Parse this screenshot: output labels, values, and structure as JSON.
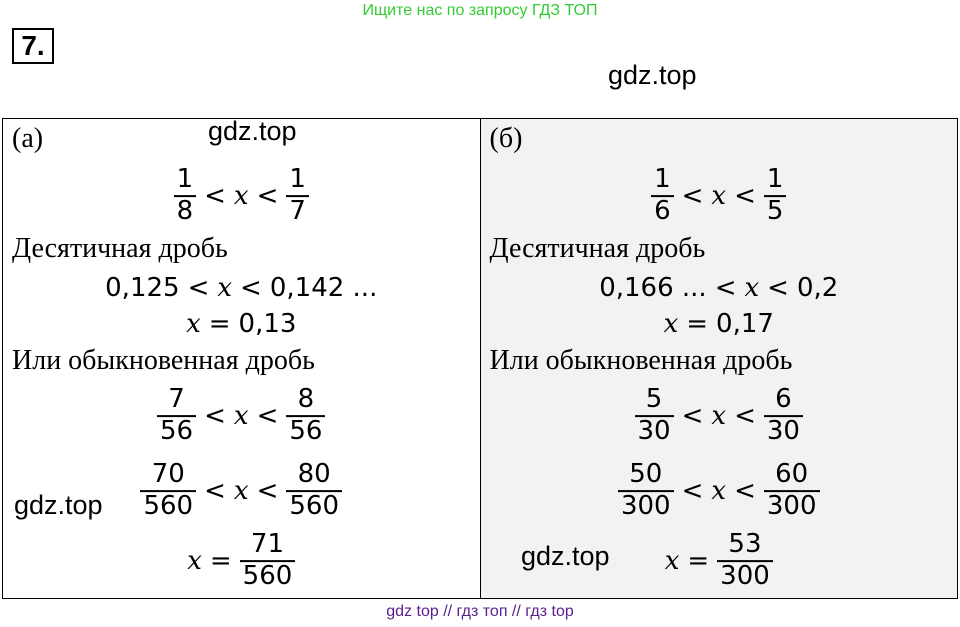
{
  "banner": "Ищите нас по запросу ГДЗ ТОП",
  "problem_number": "7.",
  "watermarks": [
    "gdz.top",
    "gdz.top",
    "gdz.top",
    "gdz.top"
  ],
  "columns": [
    {
      "label": "(а)",
      "lines": [
        {
          "parts": [
            {
              "num": "1",
              "den": "8"
            },
            "<",
            {
              "var": "x"
            },
            "<",
            {
              "num": "1",
              "den": "7"
            }
          ]
        },
        {
          "text": "Десятичная дробь"
        },
        {
          "parts": [
            "0,125",
            "<",
            {
              "var": "x"
            },
            "<",
            "0,142 ..."
          ]
        },
        {
          "parts": [
            {
              "var": "x"
            },
            "=",
            "0,13"
          ]
        },
        {
          "text": "Или обыкновенная дробь"
        },
        {
          "parts": [
            {
              "num": "7",
              "den": "56"
            },
            "<",
            {
              "var": "x"
            },
            "<",
            {
              "num": "8",
              "den": "56"
            }
          ]
        },
        {
          "parts": [
            {
              "num": "70",
              "den": "560"
            },
            "<",
            {
              "var": "x"
            },
            "<",
            {
              "num": "80",
              "den": "560"
            }
          ]
        },
        {
          "parts": [
            {
              "var": "x"
            },
            "=",
            {
              "num": "71",
              "den": "560"
            }
          ]
        }
      ]
    },
    {
      "label": "(б)",
      "lines": [
        {
          "parts": [
            {
              "num": "1",
              "den": "6"
            },
            "<",
            {
              "var": "x"
            },
            "<",
            {
              "num": "1",
              "den": "5"
            }
          ]
        },
        {
          "text": "Десятичная дробь"
        },
        {
          "parts": [
            "0,166 ...",
            "<",
            {
              "var": "x"
            },
            "<",
            "0,2"
          ]
        },
        {
          "parts": [
            {
              "var": "x"
            },
            "=",
            "0,17"
          ]
        },
        {
          "text": "Или обыкновенная дробь"
        },
        {
          "parts": [
            {
              "num": "5",
              "den": "30"
            },
            "<",
            {
              "var": "x"
            },
            "<",
            {
              "num": "6",
              "den": "30"
            }
          ]
        },
        {
          "parts": [
            {
              "num": "50",
              "den": "300"
            },
            "<",
            {
              "var": "x"
            },
            "<",
            {
              "num": "60",
              "den": "300"
            }
          ]
        },
        {
          "parts": [
            {
              "var": "x"
            },
            "=",
            {
              "num": "53",
              "den": "300"
            }
          ]
        }
      ]
    }
  ],
  "footer": "gdz top // гдз топ // гдз top"
}
